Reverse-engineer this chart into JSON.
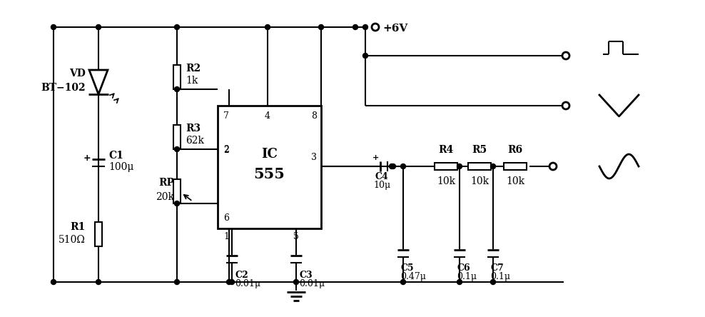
{
  "bg_color": "#ffffff",
  "line_color": "#000000",
  "lw": 1.5,
  "lw2": 2.0,
  "fig_width": 9.88,
  "fig_height": 4.44,
  "dpi": 100,
  "labels": {
    "vd": "VD",
    "bt102": "BT−102",
    "r1": "R1",
    "r1v": "510Ω",
    "c1": "C1",
    "c1v": "100μ",
    "r2": "R2",
    "r2v": "1k",
    "r3": "R3",
    "r3v": "62k",
    "rp": "RP",
    "rpv": "20k",
    "ic": "IC",
    "ic555": "555",
    "c2": "C2",
    "c2v": "0.01μ",
    "c3": "C3",
    "c3v": "0.01μ",
    "c4": "C4",
    "c4v": "10μ",
    "r4": "R4",
    "r4v": "10k",
    "r5": "R5",
    "r5v": "10k",
    "r6": "R6",
    "r6v": "10k",
    "c5": "C5",
    "c5v": "0.47μ",
    "c6": "C6",
    "c6v": "0.1μ",
    "c7": "C7",
    "c7v": "0.1μ",
    "vcc": "+6V",
    "pin7": "7",
    "pin4": "4",
    "pin8": "8",
    "pin2": "2",
    "pin3": "3",
    "pin6": "6",
    "pin1": "1",
    "pin5": "5",
    "plus": "+"
  }
}
